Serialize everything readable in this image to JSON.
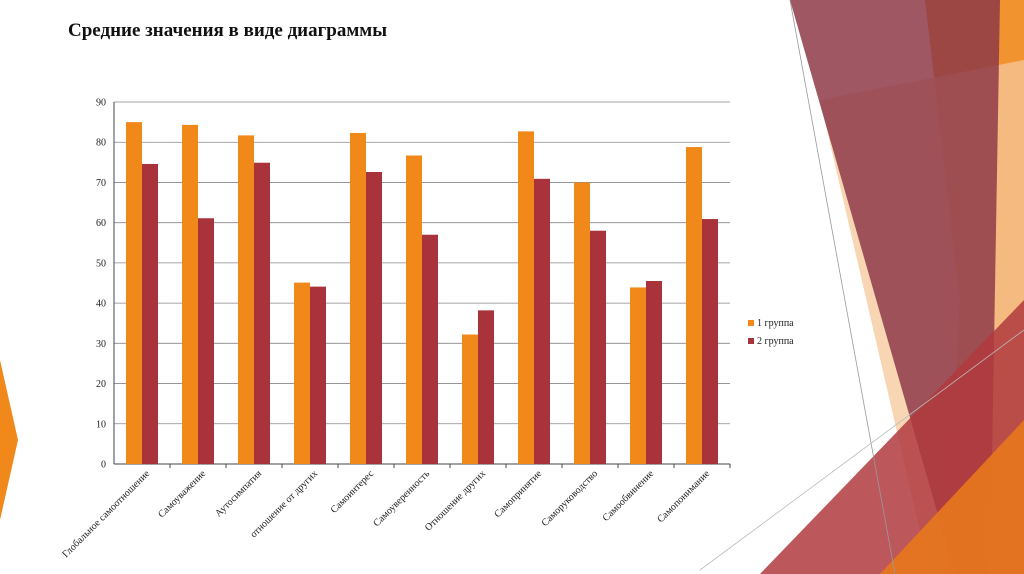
{
  "slide": {
    "title": "Средние значения в виде диаграммы"
  },
  "colors": {
    "series1": "#F0881A",
    "series2": "#A8333A",
    "grid": "#888888",
    "axis": "#444444"
  },
  "chart_data": {
    "type": "bar",
    "title": "",
    "xlabel": "",
    "ylabel": "",
    "ylim": [
      0,
      90
    ],
    "yticks": [
      0,
      10,
      20,
      30,
      40,
      50,
      60,
      70,
      80,
      90
    ],
    "grid": true,
    "legend_position": "right",
    "categories": [
      "Глобальное самоотношение",
      "Самоуважение",
      "Аутосимпатия",
      "отношение от других",
      "Самоинтерес",
      "Самоуверенность",
      "Отношение других",
      "Самопринятие",
      "Саморуководство",
      "Самообвинение",
      "Самопонимание"
    ],
    "series": [
      {
        "name": "1 группа",
        "values": [
          85,
          84.3,
          81.7,
          45.1,
          82.3,
          76.7,
          32.2,
          82.7,
          70,
          43.9,
          78.8
        ]
      },
      {
        "name": "2 группа",
        "values": [
          74.6,
          61.1,
          74.9,
          44.1,
          72.6,
          57,
          38.2,
          70.9,
          58,
          45.5,
          60.9
        ]
      }
    ]
  }
}
